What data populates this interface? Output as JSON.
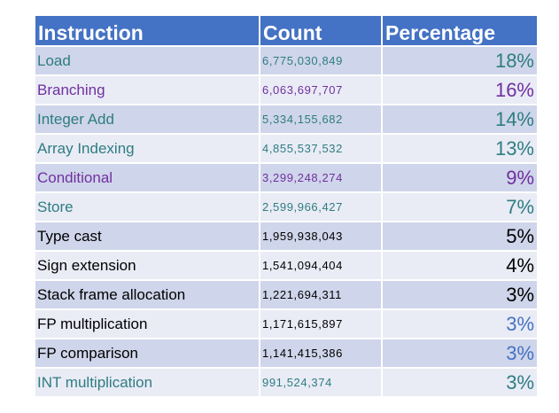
{
  "header": {
    "instruction": "Instruction",
    "count": "Count",
    "percentage": "Percentage"
  },
  "colors": {
    "header_bg": "#4472c4",
    "teal": "#2e7d82",
    "purple": "#7030a0",
    "black": "#000000",
    "blue": "#4472c4"
  },
  "rows": [
    {
      "instruction": "Load",
      "count": "6,775,030,849",
      "percentage": "18%",
      "color": "#2e7d82",
      "pct_color": "#2e7d82"
    },
    {
      "instruction": "Branching",
      "count": "6,063,697,707",
      "percentage": "16%",
      "color": "#7030a0",
      "pct_color": "#7030a0"
    },
    {
      "instruction": "Integer Add",
      "count": "5,334,155,682",
      "percentage": "14%",
      "color": "#2e7d82",
      "pct_color": "#2e7d82"
    },
    {
      "instruction": "Array Indexing",
      "count": "4,855,537,532",
      "percentage": "13%",
      "color": "#2e7d82",
      "pct_color": "#2e7d82"
    },
    {
      "instruction": "Conditional",
      "count": "3,299,248,274",
      "percentage": "9%",
      "color": "#7030a0",
      "pct_color": "#7030a0"
    },
    {
      "instruction": "Store",
      "count": "2,599,966,427",
      "percentage": "7%",
      "color": "#2e7d82",
      "pct_color": "#2e7d82"
    },
    {
      "instruction": "Type cast",
      "count": "1,959,938,043",
      "percentage": "5%",
      "color": "#000000",
      "pct_color": "#000000"
    },
    {
      "instruction": "Sign extension",
      "count": "1,541,094,404",
      "percentage": "4%",
      "color": "#000000",
      "pct_color": "#000000"
    },
    {
      "instruction": "Stack frame allocation",
      "count": "1,221,694,311",
      "percentage": "3%",
      "color": "#000000",
      "pct_color": "#000000"
    },
    {
      "instruction": "FP multiplication",
      "count": "1,171,615,897",
      "percentage": "3%",
      "color": "#000000",
      "pct_color": "#4472c4"
    },
    {
      "instruction": "FP comparison",
      "count": "1,141,415,386",
      "percentage": "3%",
      "color": "#000000",
      "pct_color": "#4472c4"
    },
    {
      "instruction": "INT multiplication",
      "count": "991,524,374",
      "percentage": "3%",
      "color": "#2e7d82",
      "pct_color": "#2e7d82"
    }
  ]
}
